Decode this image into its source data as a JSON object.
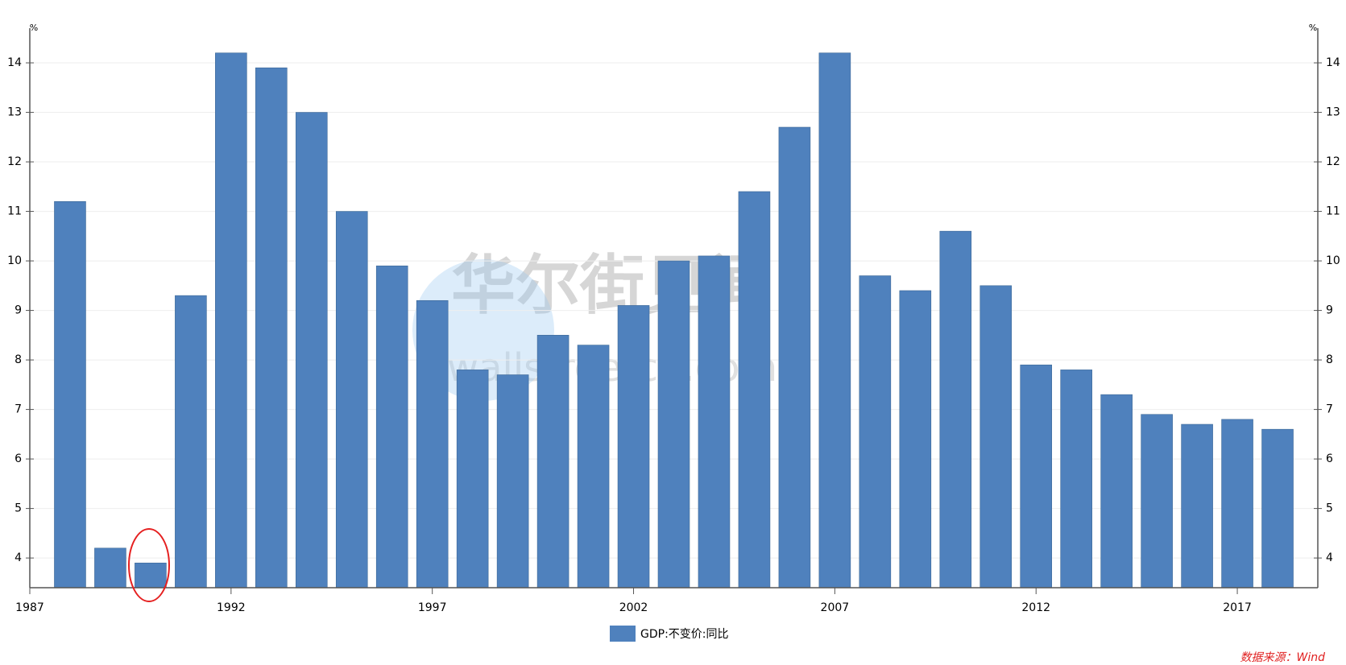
{
  "chart_data": {
    "type": "bar",
    "y_unit": "%",
    "y2_unit": "%",
    "x": [
      1988,
      1989,
      1990,
      1991,
      1992,
      1993,
      1994,
      1995,
      1996,
      1997,
      1998,
      1999,
      2000,
      2001,
      2002,
      2003,
      2004,
      2005,
      2006,
      2007,
      2008,
      2009,
      2010,
      2011,
      2012,
      2013,
      2014,
      2015,
      2016,
      2017,
      2018
    ],
    "series": [
      {
        "name": "GDP:不变价:同比",
        "color": "#4f81bd",
        "values": [
          11.2,
          4.2,
          3.9,
          9.3,
          14.2,
          13.9,
          13.0,
          11.0,
          9.9,
          9.2,
          7.8,
          7.7,
          8.5,
          8.3,
          9.1,
          10.0,
          10.1,
          11.4,
          12.7,
          14.2,
          9.7,
          9.4,
          10.6,
          9.5,
          7.9,
          7.8,
          7.3,
          6.9,
          6.7,
          6.8,
          6.6
        ]
      }
    ],
    "xlim": [
      1987,
      2019
    ],
    "xticks": [
      1987,
      1992,
      1997,
      2002,
      2007,
      2012,
      2017
    ],
    "ylim": [
      3.4,
      14.7
    ],
    "yticks": [
      4,
      5,
      6,
      7,
      8,
      9,
      10,
      11,
      12,
      13,
      14
    ],
    "y2lim": [
      3.4,
      14.7
    ],
    "y2ticks": [
      4,
      5,
      6,
      7,
      8,
      9,
      10,
      11,
      12,
      13,
      14
    ],
    "grid": true,
    "legend": "bottom",
    "watermark": [
      "华尔街见闻",
      "wallstreetcn.com"
    ],
    "source": "数据来源：Wind"
  }
}
